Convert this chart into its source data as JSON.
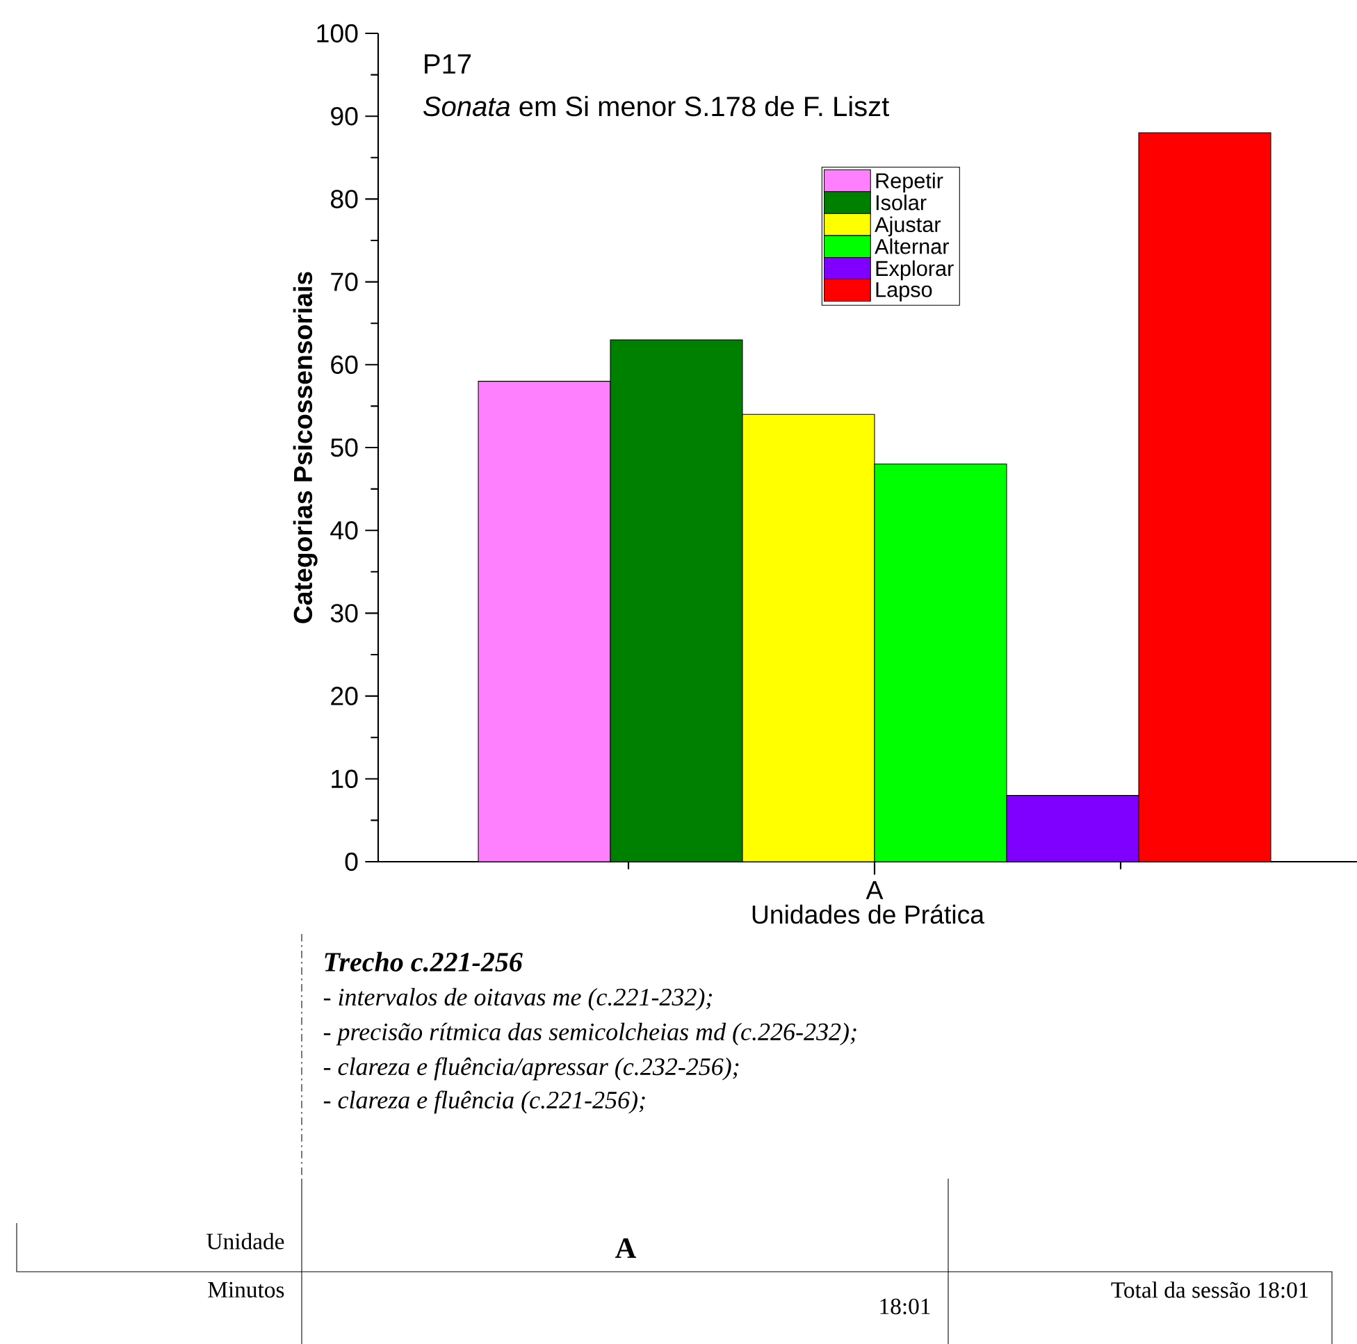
{
  "chart_data": {
    "type": "bar",
    "title": "P17",
    "subtitle": "*Sonata* em Si menor S.178 de F. Liszt",
    "xlabel": "Unidades de Prática",
    "ylabel": "Categorias Psicossensoriais",
    "categories": [
      "A"
    ],
    "series": [
      {
        "name": "Repetir",
        "color": "#ff80ff",
        "values": [
          58
        ]
      },
      {
        "name": "Isolar",
        "color": "#008000",
        "values": [
          63
        ]
      },
      {
        "name": "Ajustar",
        "color": "#ffff00",
        "values": [
          54
        ]
      },
      {
        "name": "Alternar",
        "color": "#00ff00",
        "values": [
          48
        ]
      },
      {
        "name": "Explorar",
        "color": "#8000ff",
        "values": [
          8
        ]
      },
      {
        "name": "Lapso",
        "color": "#ff0000",
        "values": [
          88
        ]
      }
    ],
    "ylim": [
      0,
      100
    ],
    "yticks": [
      0,
      10,
      20,
      30,
      40,
      50,
      60,
      70,
      80,
      90,
      100
    ],
    "legend": "top",
    "annotations": [
      "**Trecho c.221-256**",
      "- intervalos de oitavas me (c.221-232);",
      "- precisão rítmica das semicolcheias md (c.226-232);",
      "- clareza e fluência/apressar (c.232-256);",
      "- clareza e fluência (c.221-256);",
      "Unidade",
      "**A**",
      "Minutos",
      "18:01",
      "Total da sessão 18:01"
    ]
  }
}
